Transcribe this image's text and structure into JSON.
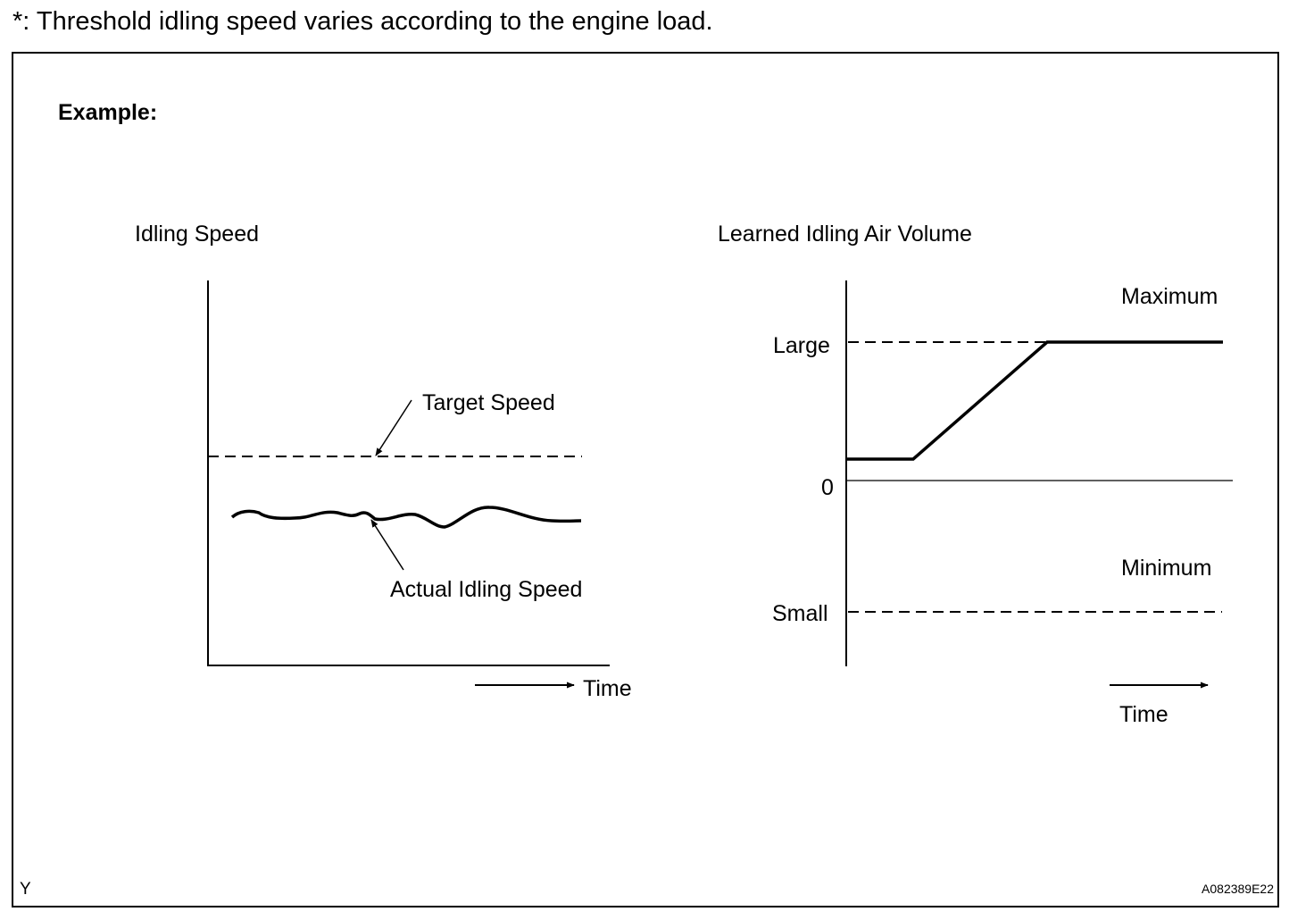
{
  "note": "*: Threshold idling speed varies according to the engine load.",
  "example_label": "Example:",
  "left_chart": {
    "title": "Idling Speed",
    "target_label": "Target Speed",
    "actual_label": "Actual Idling Speed",
    "time_label": "Time"
  },
  "right_chart": {
    "title": "Learned Idling Air Volume",
    "maximum_label": "Maximum",
    "minimum_label": "Minimum",
    "large_label": "Large",
    "small_label": "Small",
    "zero_label": "0",
    "time_label": "Time"
  },
  "corner_left": "Y",
  "corner_right": "A082389E22"
}
